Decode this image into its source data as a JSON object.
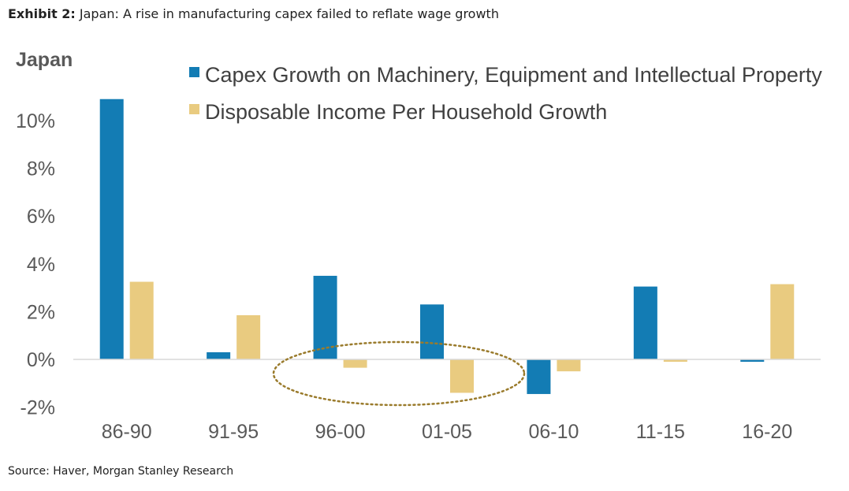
{
  "header": {
    "exhibit_label": "Exhibit 2:",
    "exhibit_title": "Japan: A rise in manufacturing capex failed to reflate wage growth"
  },
  "footer": {
    "source": "Source: Haver, Morgan Stanley Research"
  },
  "chart_data": {
    "type": "bar",
    "title": "Japan",
    "xlabel": "",
    "ylabel": "",
    "ylim": [
      -2,
      10
    ],
    "yticks": [
      -2,
      0,
      2,
      4,
      6,
      8,
      10
    ],
    "ytick_labels": [
      "-2%",
      "0%",
      "2%",
      "4%",
      "6%",
      "8%",
      "10%"
    ],
    "categories": [
      "86-90",
      "91-95",
      "96-00",
      "01-05",
      "06-10",
      "11-15",
      "16-20"
    ],
    "series": [
      {
        "name": "Capex Growth on Machinery, Equipment and Intellectual Property",
        "color": "#137cb4",
        "values": [
          10.9,
          0.3,
          3.5,
          2.3,
          -1.45,
          3.05,
          -0.1
        ]
      },
      {
        "name": "Disposable Income Per Household Growth",
        "color": "#e9cb80",
        "values": [
          3.25,
          1.85,
          -0.35,
          -1.4,
          -0.5,
          -0.1,
          3.15
        ]
      }
    ],
    "legend_position": "top-right",
    "annotation": {
      "type": "dotted-ellipse",
      "color": "#9a7b2c",
      "highlights": [
        "96-00",
        "01-05"
      ]
    },
    "grid": false
  }
}
